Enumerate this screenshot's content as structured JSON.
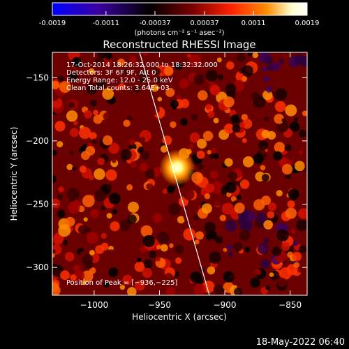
{
  "colorbar": {
    "ticks": [
      "-0.0019",
      "-0.0011",
      "-0.00037",
      "0.00037",
      "0.0011",
      "0.0019"
    ],
    "tick_values": [
      -0.0019,
      -0.0011,
      -0.00037,
      0.00037,
      0.0011,
      0.0019
    ],
    "unit_label": "(photons cm⁻² s⁻¹ asec⁻²)",
    "colormap": [
      "#0000ff",
      "#3b00a0",
      "#000000",
      "#7a0000",
      "#ff2000",
      "#ff8c00",
      "#ffffd0",
      "#ffffff"
    ]
  },
  "image": {
    "title": "Reconstructed RHESSI Image",
    "xlabel": "Heliocentric X (arcsec)",
    "ylabel": "Heliocentric Y (arcsec)",
    "xticks": [
      "−1000",
      "−950",
      "−900",
      "−850"
    ],
    "xtick_values": [
      -1000,
      -950,
      -900,
      -850
    ],
    "yticks": [
      "−150",
      "−200",
      "−250",
      "−300"
    ],
    "ytick_values": [
      -150,
      -200,
      -250,
      -300
    ],
    "xlim": [
      -1032,
      -837
    ],
    "ylim": [
      -322,
      -130
    ],
    "info_lines": [
      "17-Oct-2014 18:26:32.000 to 18:32:32.000",
      "Detectors: 3F 6F 9F, Att 0",
      "Energy Range: 12.0 - 25.0 keV",
      "Clean     Total counts: 3.64E+03"
    ],
    "peak_label": "Position of Peak = [−936,−225]",
    "peak": [
      -936,
      -225
    ]
  },
  "footer": {
    "timestamp": "18-May-2022 06:40"
  }
}
